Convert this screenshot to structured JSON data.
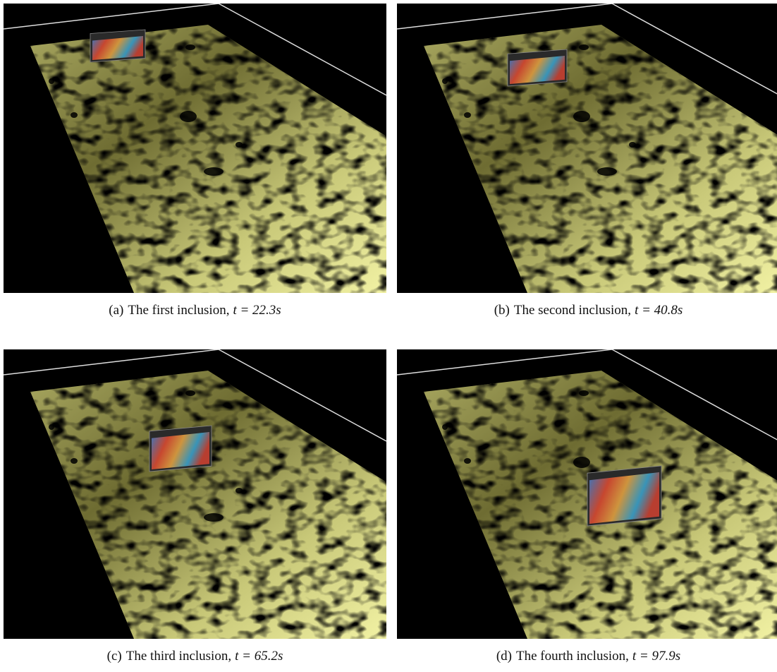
{
  "figure": {
    "panels": [
      {
        "caption": {
          "label": "(a)",
          "text": "The first inclusion,",
          "math": "t = 22.3s"
        }
      },
      {
        "caption": {
          "label": "(b)",
          "text": "The second inclusion,",
          "math": "t = 40.8s"
        }
      },
      {
        "caption": {
          "label": "(c)",
          "text": "The third inclusion,",
          "math": "t = 65.2s"
        }
      },
      {
        "caption": {
          "label": "(d)",
          "text": "The fourth inclusion,",
          "math": "t = 97.9s"
        }
      }
    ]
  }
}
